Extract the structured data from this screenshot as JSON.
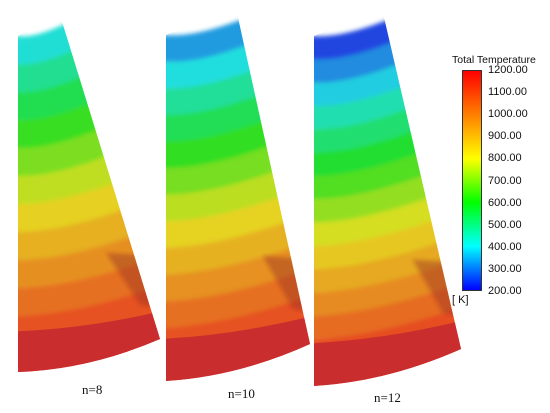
{
  "panels": [
    {
      "label": "n=8"
    },
    {
      "label": "n=10"
    },
    {
      "label": "n=12"
    }
  ],
  "legend": {
    "title": "Total Temperature",
    "unit": "[ K]",
    "ticks": [
      "1200.00",
      "1100.00",
      "1000.00",
      "900.00",
      "800.00",
      "700.00",
      "600.00",
      "500.00",
      "400.00",
      "300.00",
      "200.00"
    ],
    "colormap": [
      "#ff0000",
      "#ff7f00",
      "#ffff00",
      "#00ff00",
      "#00ffff",
      "#0000ff"
    ]
  }
}
